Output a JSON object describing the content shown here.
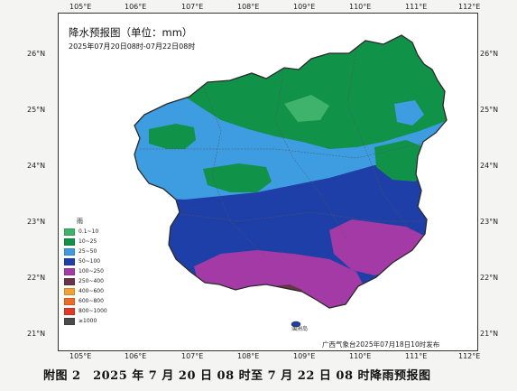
{
  "map": {
    "title": "降水预报图（单位：mm）",
    "subtitle": "2025年07月20日08时-07月22日08时",
    "publisher": "广西气象台2025年07月18日10时发布",
    "caption": "附图 2　2025 年 7 月 20 日 08 时至 7 月 22 日 08 时降雨预报图",
    "island_label": "涠洲岛",
    "longitude_labels": [
      "105°E",
      "106°E",
      "107°E",
      "108°E",
      "109°E",
      "110°E",
      "111°E",
      "112°E"
    ],
    "latitude_labels": [
      "26°N",
      "25°N",
      "24°N",
      "23°N",
      "22°N",
      "21°N"
    ]
  },
  "legend": {
    "title": "雨",
    "items": [
      {
        "label": "0.1~10",
        "color": "#3fb36b"
      },
      {
        "label": "10~25",
        "color": "#119249"
      },
      {
        "label": "25~50",
        "color": "#3d9de0"
      },
      {
        "label": "50~100",
        "color": "#1f3fa8"
      },
      {
        "label": "100~250",
        "color": "#a43aa5"
      },
      {
        "label": "250~400",
        "color": "#6a3349"
      },
      {
        "label": "400~600",
        "color": "#f2a134"
      },
      {
        "label": "600~800",
        "color": "#ef6c28"
      },
      {
        "label": "800~1000",
        "color": "#e23a25"
      },
      {
        "label": "≥1000",
        "color": "#4b4b4b"
      }
    ]
  }
}
